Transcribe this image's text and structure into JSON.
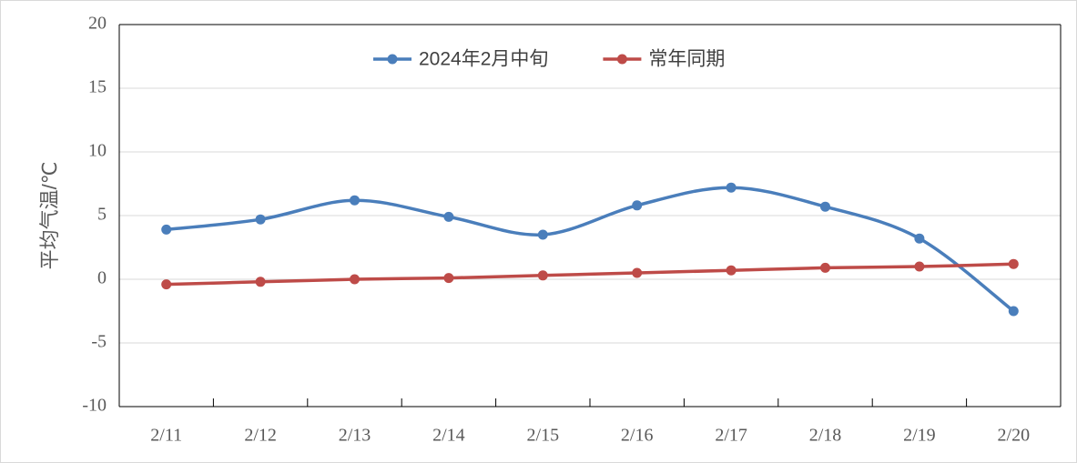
{
  "chart_data": {
    "type": "line",
    "y_label": "平均气温/℃",
    "categories": [
      "2/11",
      "2/12",
      "2/13",
      "2/14",
      "2/15",
      "2/16",
      "2/17",
      "2/18",
      "2/19",
      "2/20"
    ],
    "series": [
      {
        "name": "2024年2月中旬",
        "color": "#4a7ebb",
        "values": [
          3.9,
          4.7,
          6.2,
          4.9,
          3.5,
          5.8,
          7.2,
          5.7,
          3.2,
          -2.5
        ]
      },
      {
        "name": "常年同期",
        "color": "#be4b48",
        "values": [
          -0.4,
          -0.2,
          0,
          0.1,
          0.3,
          0.5,
          0.7,
          0.9,
          1.0,
          1.2
        ]
      }
    ],
    "ylim": [
      -10,
      20
    ],
    "yticks": [
      -10,
      -5,
      0,
      5,
      10,
      15,
      20
    ],
    "grid": true,
    "smooth": true,
    "legend": "top"
  }
}
